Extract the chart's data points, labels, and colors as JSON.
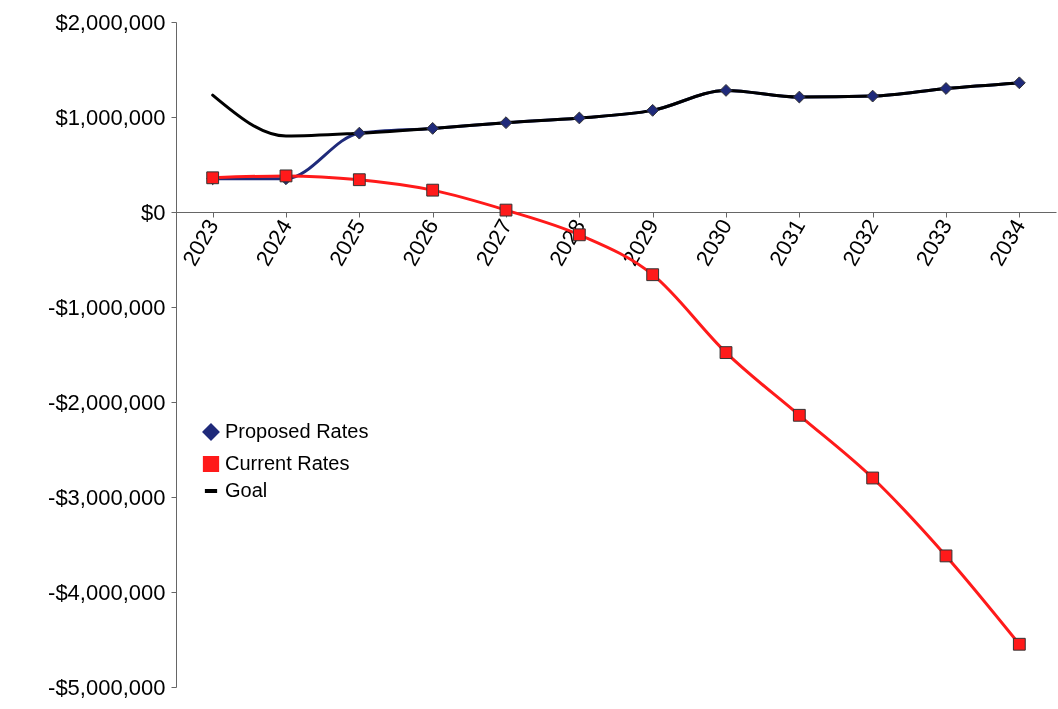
{
  "chart_data": {
    "type": "line",
    "categories": [
      "2023",
      "2024",
      "2025",
      "2026",
      "2027",
      "2028",
      "2029",
      "2030",
      "2031",
      "2032",
      "2033",
      "2034"
    ],
    "series": [
      {
        "name": "Proposed Rates",
        "color": "#1f2a7a",
        "marker": "diamond",
        "values": [
          350000,
          350000,
          830000,
          880000,
          940000,
          990000,
          1070000,
          1280000,
          1210000,
          1220000,
          1300000,
          1360000
        ]
      },
      {
        "name": "Current Rates",
        "color": "#ff1a1a",
        "marker": "square",
        "values": [
          360000,
          380000,
          340000,
          230000,
          20000,
          -240000,
          -660000,
          -1480000,
          -2140000,
          -2800000,
          -3620000,
          -4550000
        ]
      },
      {
        "name": "Goal",
        "color": "#000000",
        "marker": "none",
        "values": [
          1230000,
          800000,
          830000,
          880000,
          940000,
          990000,
          1070000,
          1280000,
          1210000,
          1220000,
          1300000,
          1360000
        ]
      }
    ],
    "ylim": [
      -5000000,
      2000000
    ],
    "yticks": [
      {
        "value": 2000000,
        "label": "$2,000,000"
      },
      {
        "value": 1000000,
        "label": "$1,000,000"
      },
      {
        "value": 0,
        "label": "$0"
      },
      {
        "value": -1000000,
        "label": "-$1,000,000"
      },
      {
        "value": -2000000,
        "label": "-$2,000,000"
      },
      {
        "value": -3000000,
        "label": "-$3,000,000"
      },
      {
        "value": -4000000,
        "label": "-$4,000,000"
      },
      {
        "value": -5000000,
        "label": "-$5,000,000"
      }
    ],
    "legend": "left",
    "grid": false,
    "line_style": "solid"
  }
}
